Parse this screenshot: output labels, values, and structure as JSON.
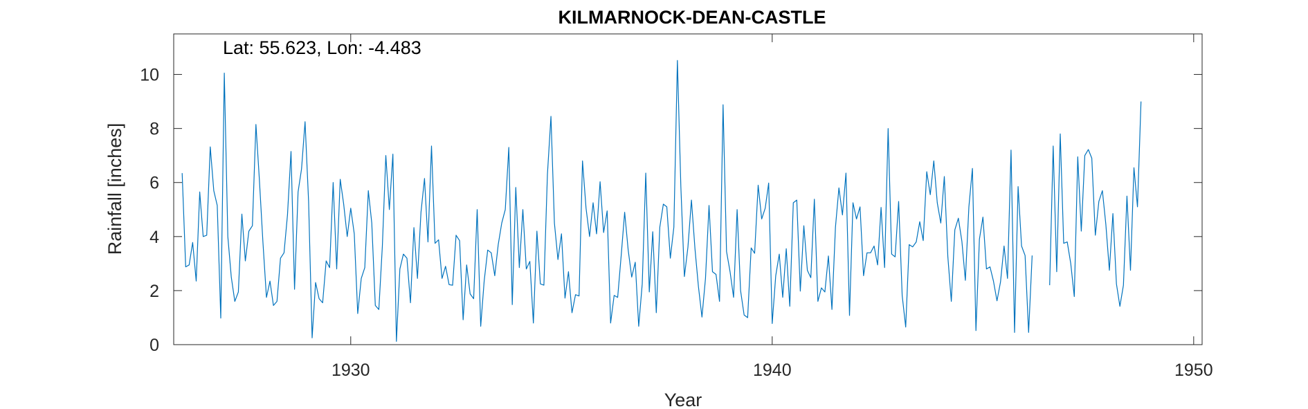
{
  "chart_data": {
    "type": "line",
    "title": "KILMARNOCK-DEAN-CASTLE",
    "annotation": "Lat: 55.623, Lon: -4.483",
    "xlabel": "Year",
    "ylabel": "Rainfall [inches]",
    "xlim": [
      1925.8,
      1950.2
    ],
    "ylim": [
      0,
      11.5
    ],
    "xticks": [
      1930,
      1940,
      1950
    ],
    "xtick_labels": [
      "1930",
      "1940",
      "1950"
    ],
    "yticks": [
      0,
      2,
      4,
      6,
      8,
      10
    ],
    "ytick_labels": [
      "0",
      "2",
      "4",
      "6",
      "8",
      "10"
    ],
    "grid": false,
    "box": true,
    "line_color": "#0072BD",
    "series": [
      {
        "start_year": 1926,
        "values": [
          6.35,
          2.88,
          2.95,
          3.78,
          2.35,
          5.65,
          4.0,
          4.05,
          7.32,
          5.7,
          5.15,
          0.98,
          10.05,
          4.0,
          2.5,
          1.6,
          1.95,
          4.83,
          3.1,
          4.2,
          4.4,
          8.15,
          6.1,
          3.8,
          1.75,
          2.35,
          1.45,
          1.6,
          3.2,
          3.4,
          4.8,
          7.15,
          2.05,
          5.65,
          6.5,
          8.25,
          5.3,
          0.25,
          2.3,
          1.7,
          1.55,
          3.1,
          2.85,
          6.0,
          2.8,
          6.12,
          5.2,
          4.0,
          5.05,
          4.1,
          1.15,
          2.45,
          2.85,
          5.7,
          4.5,
          1.45,
          1.3,
          3.65,
          7.0,
          5.0,
          7.05,
          0.12,
          2.8,
          3.35,
          3.2,
          1.55,
          4.33,
          2.45,
          4.9,
          6.15,
          3.8,
          7.35,
          3.75,
          3.88,
          2.45,
          2.9,
          2.22,
          2.2,
          4.05,
          3.85,
          0.92,
          2.95,
          1.88,
          1.7,
          5.0,
          0.68,
          2.35,
          3.5,
          3.4,
          2.55,
          3.7,
          4.5,
          5.0,
          7.3,
          1.48,
          5.82,
          2.85,
          5.0,
          2.8,
          3.08,
          0.8,
          4.2,
          2.25,
          2.2,
          6.3,
          8.45,
          4.5,
          3.15,
          4.1,
          1.72,
          2.7,
          1.18,
          1.85,
          1.8,
          6.8,
          5.05,
          4.0,
          5.25,
          4.1,
          6.03,
          4.15,
          4.95,
          0.8,
          1.82,
          1.75,
          3.3,
          4.9,
          3.5,
          2.5,
          3.05,
          0.68,
          2.25,
          6.35,
          1.95,
          4.18,
          1.18,
          4.35,
          5.2,
          5.1,
          3.2,
          4.35,
          10.52,
          5.85,
          2.52,
          3.6,
          5.35,
          3.55,
          2.15,
          1.02,
          2.45,
          5.15,
          2.7,
          2.6,
          1.6,
          8.88,
          3.45,
          2.7,
          1.75,
          5.0,
          2.0,
          1.1,
          1.0,
          3.58,
          3.38,
          5.9,
          4.65,
          5.05,
          5.98,
          0.78,
          2.55,
          3.35,
          1.75,
          3.55,
          1.42,
          5.25,
          5.35,
          1.98,
          4.4,
          2.75,
          2.48,
          5.38,
          1.6,
          2.1,
          1.95,
          3.28,
          1.3,
          4.35,
          5.8,
          4.8,
          6.35,
          1.08,
          5.25,
          4.65,
          5.1,
          2.55,
          3.4,
          3.4,
          3.65,
          2.95,
          5.08,
          2.85,
          8.0,
          3.35,
          3.25,
          5.3,
          1.82,
          0.65,
          3.7,
          3.62,
          3.8,
          4.55,
          3.85,
          6.4,
          5.55,
          6.8,
          5.25,
          4.5,
          6.22,
          3.25,
          1.6,
          4.25,
          4.68,
          3.82,
          2.38,
          5.1,
          6.52,
          0.52,
          3.9,
          4.72,
          2.8,
          2.88,
          2.35,
          1.62,
          2.32,
          3.65,
          2.45,
          7.2,
          0.45,
          5.85,
          3.65,
          3.3,
          0.45,
          3.3,
          null,
          null,
          null,
          null,
          2.2,
          7.35,
          2.7,
          7.8,
          3.75,
          3.8,
          3.0,
          1.78,
          6.95,
          4.2,
          7.0,
          7.22,
          6.9,
          4.05,
          5.3,
          5.7,
          4.45,
          2.75,
          4.85,
          2.25,
          1.42,
          2.2,
          5.5,
          2.75,
          6.55,
          5.1,
          9.0
        ]
      }
    ]
  }
}
